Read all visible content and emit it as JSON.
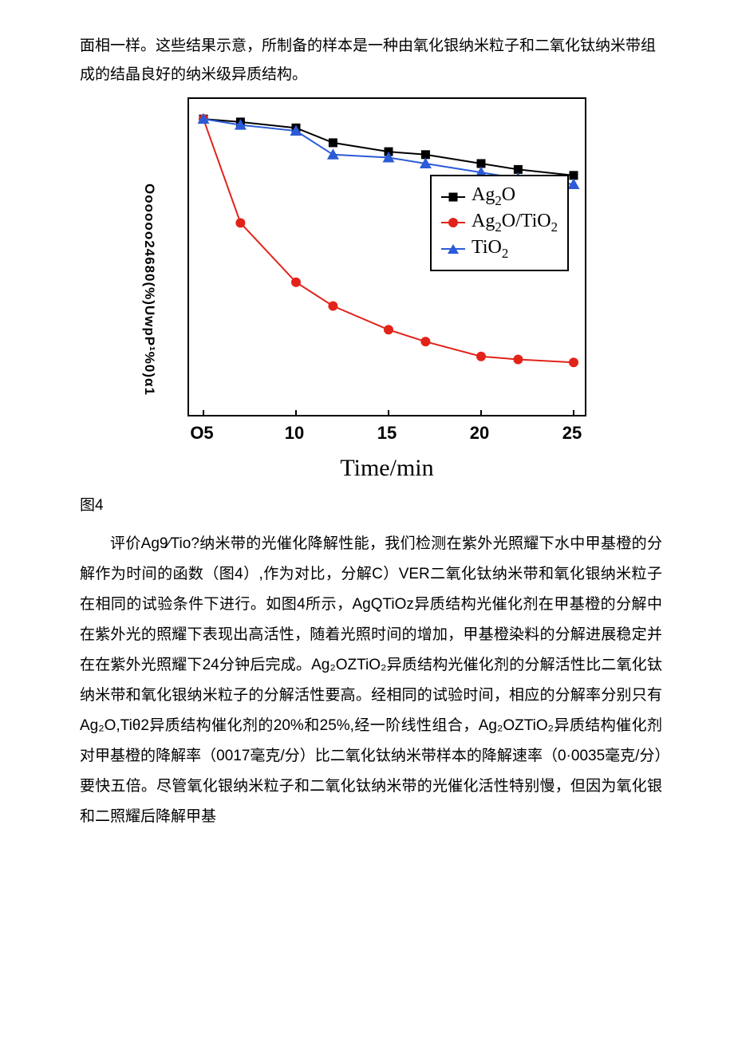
{
  "intro": "面相一样。这些结果示意，所制备的样本是一种由氧化银纳米粒子和二氧化钛纳米带组成的结晶良好的纳米级异质结构。",
  "chart": {
    "type": "line",
    "ylabel_raw": "Oooooo24680(%)UwpP¹%0)α1",
    "xlabel": "Time/min",
    "xlim": [
      5,
      25
    ],
    "ylim": [
      0,
      100
    ],
    "xticks": [
      {
        "pos": 0.0,
        "label": "O5"
      },
      {
        "pos": 0.25,
        "label": "10"
      },
      {
        "pos": 0.5,
        "label": "15"
      },
      {
        "pos": 0.75,
        "label": "20"
      },
      {
        "pos": 1.0,
        "label": "25"
      }
    ],
    "xtick_fontsize": 22,
    "xlabel_fontsize": 30,
    "legend_fontsize": 24,
    "background_color": "#ffffff",
    "border_color": "#000000",
    "series": [
      {
        "name": "Ag2O",
        "legend_html": "Ag<sub>2</sub>O",
        "color": "#000000",
        "marker": "square",
        "marker_size": 11,
        "line_width": 2,
        "points": [
          {
            "x": 5,
            "y": 97
          },
          {
            "x": 7,
            "y": 96
          },
          {
            "x": 10,
            "y": 94
          },
          {
            "x": 12,
            "y": 89
          },
          {
            "x": 15,
            "y": 86
          },
          {
            "x": 17,
            "y": 85
          },
          {
            "x": 20,
            "y": 82
          },
          {
            "x": 22,
            "y": 80
          },
          {
            "x": 25,
            "y": 78
          }
        ]
      },
      {
        "name": "Ag2O/TiO2",
        "legend_html": "Ag<sub>2</sub>O/TiO<sub>2</sub>",
        "color": "#e2231a",
        "marker": "circle",
        "marker_size": 12,
        "line_width": 2,
        "points": [
          {
            "x": 5,
            "y": 97
          },
          {
            "x": 7,
            "y": 62
          },
          {
            "x": 10,
            "y": 42
          },
          {
            "x": 12,
            "y": 34
          },
          {
            "x": 15,
            "y": 26
          },
          {
            "x": 17,
            "y": 22
          },
          {
            "x": 20,
            "y": 17
          },
          {
            "x": 22,
            "y": 16
          },
          {
            "x": 25,
            "y": 15
          }
        ]
      },
      {
        "name": "TiO2",
        "legend_html": "TiO<sub>2</sub>",
        "color": "#2b5bd7",
        "marker": "triangle",
        "marker_size": 12,
        "line_width": 2,
        "points": [
          {
            "x": 5,
            "y": 97
          },
          {
            "x": 7,
            "y": 95
          },
          {
            "x": 10,
            "y": 93
          },
          {
            "x": 12,
            "y": 85
          },
          {
            "x": 15,
            "y": 84
          },
          {
            "x": 17,
            "y": 82
          },
          {
            "x": 20,
            "y": 79
          },
          {
            "x": 22,
            "y": 77
          },
          {
            "x": 25,
            "y": 75
          }
        ]
      }
    ]
  },
  "figure_caption": "图4",
  "body": "评价Ag9∕Tio?纳米带的光催化降解性能，我们检测在紫外光照耀下水中甲基橙的分解作为时间的函数（图4）,作为对比，分解C）VER二氧化钛纳米带和氧化银纳米粒子在相同的试验条件下进行。如图4所示，AgQTiOz异质结构光催化剂在甲基橙的分解中在紫外光的照耀下表现出高活性，随着光照时间的增加，甲基橙染料的分解进展稳定并在在紫外光照耀下24分钟后完成。Ag₂OZTiO₂异质结构光催化剂的分解活性比二氧化钛纳米带和氧化银纳米粒子的分解活性要高。经相同的试验时间，相应的分解率分别只有Ag₂O,Tiθ2异质结构催化剂的20%和25%,经一阶线性组合，Ag₂OZTiO₂异质结构催化剂对甲基橙的降解率（0017毫克/分）比二氧化钛纳米带样本的降解速率（0·0035毫克/分）要快五倍。尽管氧化银纳米粒子和二氧化钛纳米带的光催化活性特别慢，但因为氧化银和二照耀后降解甲基"
}
